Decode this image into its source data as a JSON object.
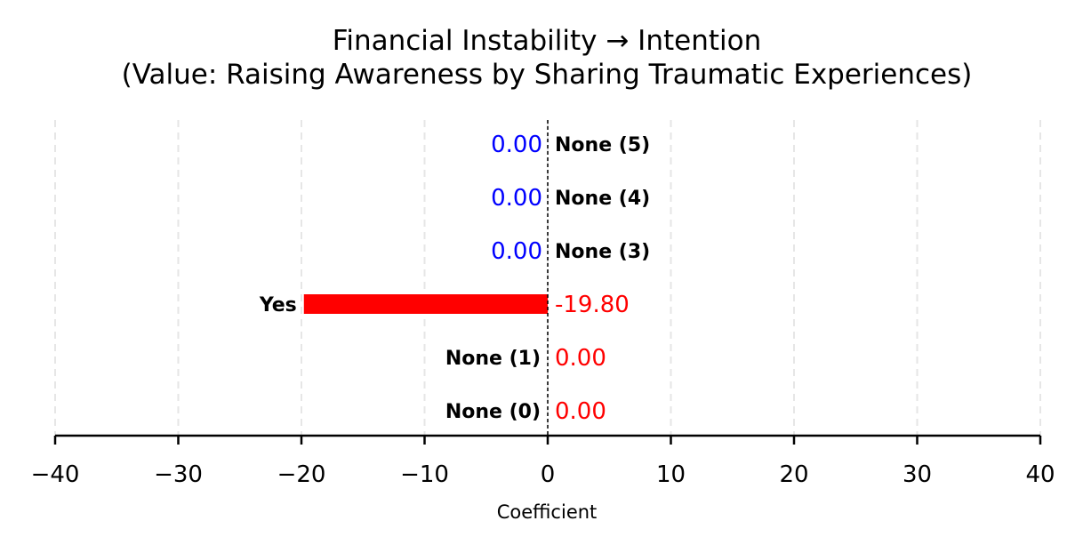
{
  "chart_data": {
    "type": "bar",
    "orientation": "horizontal",
    "title_line1": "Financial Instability → Intention",
    "title_line2": "(Value: Raising Awareness by Sharing Traumatic Experiences)",
    "xlabel": "Coefficient",
    "ylabel": "",
    "xlim": [
      -40,
      40
    ],
    "x_ticks": [
      -40,
      -30,
      -20,
      -10,
      0,
      10,
      20,
      30,
      40
    ],
    "x_tick_labels": [
      "−40",
      "−30",
      "−20",
      "−10",
      "0",
      "10",
      "20",
      "30",
      "40"
    ],
    "grid": "vertical dashed",
    "legend": "none",
    "categories": [
      "None (0)",
      "None (1)",
      "Yes",
      "None (3)",
      "None (4)",
      "None (5)"
    ],
    "values": [
      0.0,
      0.0,
      -19.8,
      0.0,
      0.0,
      0.0
    ],
    "value_labels": [
      "0.00",
      "0.00",
      "-19.80",
      "0.00",
      "0.00",
      "0.00"
    ],
    "value_label_colors": [
      "#ff0000",
      "#ff0000",
      "#ff0000",
      "#0000ff",
      "#0000ff",
      "#0000ff"
    ],
    "colors": {
      "bar": "#ff0000",
      "positive_label": "#0000ff",
      "negative_label": "#ff0000",
      "zero_line": "#000000",
      "grid": "#e6e6e6"
    }
  }
}
